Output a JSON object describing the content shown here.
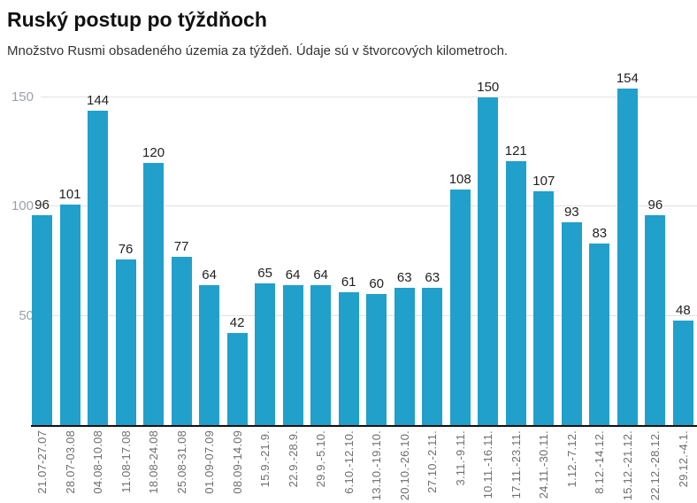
{
  "header": {
    "title": "Ruský postup po týždňoch",
    "subtitle": "Množstvo Rusmi obsadeného územia za týždeň. Údaje sú v štvorcových kilometroch."
  },
  "chart_data": {
    "type": "bar",
    "title": "Ruský postup po týždňoch",
    "subtitle": "Množstvo Rusmi obsadeného územia za týždeň. Údaje sú v štvorcových kilometroch.",
    "categories": [
      "21.07-27.07",
      "28.07-03.08",
      "04.08-10.08",
      "11.08-17.08",
      "18.08-24.08",
      "25.08-31.08",
      "01.09-07.09",
      "08.09-14.09",
      "15.9.-21.9.",
      "22.9.-28.9.",
      "29.9.-5.10.",
      "6.10.-12.10.",
      "13.10.-19.10.",
      "20.10.-26.10.",
      "27.10.-2.11.",
      "3.11.-9.11.",
      "10.11.-16.11.",
      "17.11.-23.11.",
      "24.11.-30.11.",
      "1.12.-7.12.",
      "8.12.-14.12.",
      "15.12.-21.12.",
      "22.12.-28.12.",
      "29.12.-4.1."
    ],
    "values": [
      96,
      101,
      144,
      76,
      120,
      77,
      64,
      42,
      65,
      64,
      64,
      61,
      60,
      63,
      63,
      108,
      150,
      121,
      107,
      93,
      83,
      154,
      96,
      48
    ],
    "value_labels_shown": true,
    "xlabel": "",
    "ylabel": "",
    "yticks": [
      50,
      100,
      150
    ],
    "ylim": [
      0,
      160
    ],
    "grid": true,
    "legend": false,
    "colors": {
      "bar": "#21a0cb",
      "grid": "#e2e2e2",
      "axis": "#111111",
      "value_label": "#222222",
      "y_tick_label": "#9ba0a8",
      "x_tick_label": "#6e6e6e"
    }
  }
}
